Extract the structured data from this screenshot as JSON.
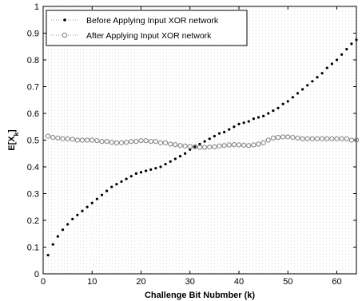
{
  "chart_data": {
    "type": "scatter",
    "xlabel": "Challenge Bit Nubmber (k)",
    "ylabel": "E[X_k]",
    "ylabel_main": "E[X",
    "ylabel_sub": "k",
    "ylabel_close": "]",
    "xlim": [
      0,
      64
    ],
    "ylim": [
      0,
      1
    ],
    "xticks": [
      0,
      10,
      20,
      30,
      40,
      50,
      60
    ],
    "yticks": [
      0,
      0.1,
      0.2,
      0.3,
      0.4,
      0.5,
      0.6,
      0.7,
      0.8,
      0.9,
      1
    ],
    "xtick_labels": [
      "0",
      "10",
      "20",
      "30",
      "40",
      "50",
      "60"
    ],
    "ytick_labels": [
      "0",
      "0.1",
      "0.2",
      "0.3",
      "0.4",
      "0.5",
      "0.6",
      "0.7",
      "0.8",
      "0.9",
      "1"
    ],
    "legend_position": "top-left",
    "grid": "dotted",
    "x": [
      1,
      2,
      3,
      4,
      5,
      6,
      7,
      8,
      9,
      10,
      11,
      12,
      13,
      14,
      15,
      16,
      17,
      18,
      19,
      20,
      21,
      22,
      23,
      24,
      25,
      26,
      27,
      28,
      29,
      30,
      31,
      32,
      33,
      34,
      35,
      36,
      37,
      38,
      39,
      40,
      41,
      42,
      43,
      44,
      45,
      46,
      47,
      48,
      49,
      50,
      51,
      52,
      53,
      54,
      55,
      56,
      57,
      58,
      59,
      60,
      61,
      62,
      63,
      64
    ],
    "series": [
      {
        "name": "Before Applying Input XOR network",
        "marker": "filled-dot",
        "color": "#000000",
        "values": [
          0.07,
          0.11,
          0.14,
          0.165,
          0.185,
          0.205,
          0.22,
          0.235,
          0.25,
          0.265,
          0.28,
          0.295,
          0.31,
          0.325,
          0.335,
          0.345,
          0.355,
          0.365,
          0.375,
          0.38,
          0.385,
          0.39,
          0.395,
          0.4,
          0.41,
          0.42,
          0.43,
          0.44,
          0.45,
          0.465,
          0.475,
          0.485,
          0.495,
          0.505,
          0.515,
          0.525,
          0.53,
          0.54,
          0.55,
          0.56,
          0.565,
          0.57,
          0.58,
          0.585,
          0.59,
          0.6,
          0.61,
          0.62,
          0.635,
          0.645,
          0.66,
          0.675,
          0.69,
          0.705,
          0.72,
          0.735,
          0.75,
          0.77,
          0.785,
          0.8,
          0.82,
          0.84,
          0.86,
          0.875
        ]
      },
      {
        "name": "After Applying Input XOR network",
        "marker": "open-circle",
        "color": "#808080",
        "values": [
          0.515,
          0.51,
          0.508,
          0.505,
          0.505,
          0.503,
          0.5,
          0.5,
          0.5,
          0.5,
          0.498,
          0.495,
          0.495,
          0.492,
          0.49,
          0.49,
          0.492,
          0.495,
          0.495,
          0.498,
          0.498,
          0.495,
          0.495,
          0.49,
          0.49,
          0.485,
          0.483,
          0.48,
          0.478,
          0.476,
          0.475,
          0.473,
          0.473,
          0.474,
          0.475,
          0.478,
          0.48,
          0.482,
          0.483,
          0.482,
          0.481,
          0.48,
          0.482,
          0.485,
          0.49,
          0.5,
          0.508,
          0.51,
          0.512,
          0.512,
          0.51,
          0.508,
          0.505,
          0.505,
          0.505,
          0.505,
          0.505,
          0.505,
          0.505,
          0.505,
          0.505,
          0.505,
          0.5,
          0.5
        ]
      }
    ]
  }
}
